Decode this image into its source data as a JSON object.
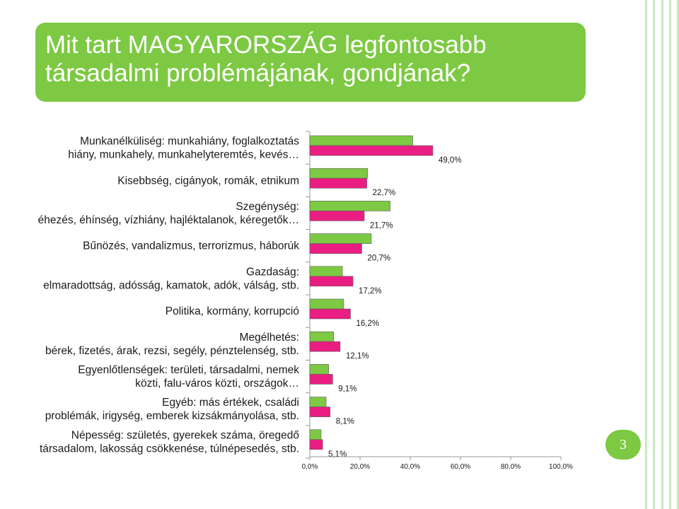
{
  "theme": {
    "accent": "#7dc943",
    "series1_color": "#7dc943",
    "series2_color": "#ea1e82",
    "stripe_color": "#c8eac0"
  },
  "slide": {
    "title_lines": [
      "Mit tart MAGYARORSZÁG legfontosabb",
      "társadalmi problémájának, gondjának?"
    ],
    "page_number": "3"
  },
  "chart_data": {
    "type": "bar",
    "orientation": "horizontal",
    "title": "",
    "categories": [
      [
        "Munkanélküliség: munkahiány, foglalkoztatás",
        "hiány, munkahely, munkahelyteremtés, kevés…"
      ],
      [
        "Kisebbség, cigányok, romák, etnikum"
      ],
      [
        "Szegénység:",
        "éhezés, éhínség, vízhiány, hajléktalanok, kéregetők…"
      ],
      [
        "Bűnözés, vandalizmus, terrorizmus, háborúk"
      ],
      [
        "Gazdaság:",
        "elmaradottság, adósság, kamatok, adók, válság, stb."
      ],
      [
        "Politika, kormány, korrupció"
      ],
      [
        "Megélhetés:",
        "bérek, fizetés, árak, rezsi, segély, pénztelenség, stb."
      ],
      [
        "Egyenlőtlenségek: területi, társadalmi, nemek",
        "közti, falu-város közti, országok…"
      ],
      [
        "Egyéb: más értékek, családi",
        "problémák, irigység, emberek kizsákmányolása, stb."
      ],
      [
        "Népesség: születés, gyerekek száma, öregedő",
        "társadalom, lakosság csökkenése, túlnépesedés, stb."
      ]
    ],
    "series": [
      {
        "values": [
          41.0,
          23.0,
          32.0,
          24.5,
          13.0,
          13.5,
          9.5,
          7.5,
          6.5,
          4.5
        ]
      },
      {
        "values": [
          49.0,
          22.7,
          21.7,
          20.7,
          17.2,
          16.2,
          12.1,
          9.1,
          8.1,
          5.1
        ]
      }
    ],
    "value_labels": [
      "49,0%",
      "22,7%",
      "21,7%",
      "20,7%",
      "17,2%",
      "16,2%",
      "12,1%",
      "9,1%",
      "8,1%",
      "5,1%"
    ],
    "xticks": [
      "0,0%",
      "20,0%",
      "40,0%",
      "60,0%",
      "80,0%",
      "100,0%"
    ],
    "xlim": [
      0,
      100
    ],
    "grid": false,
    "legend": "none"
  }
}
